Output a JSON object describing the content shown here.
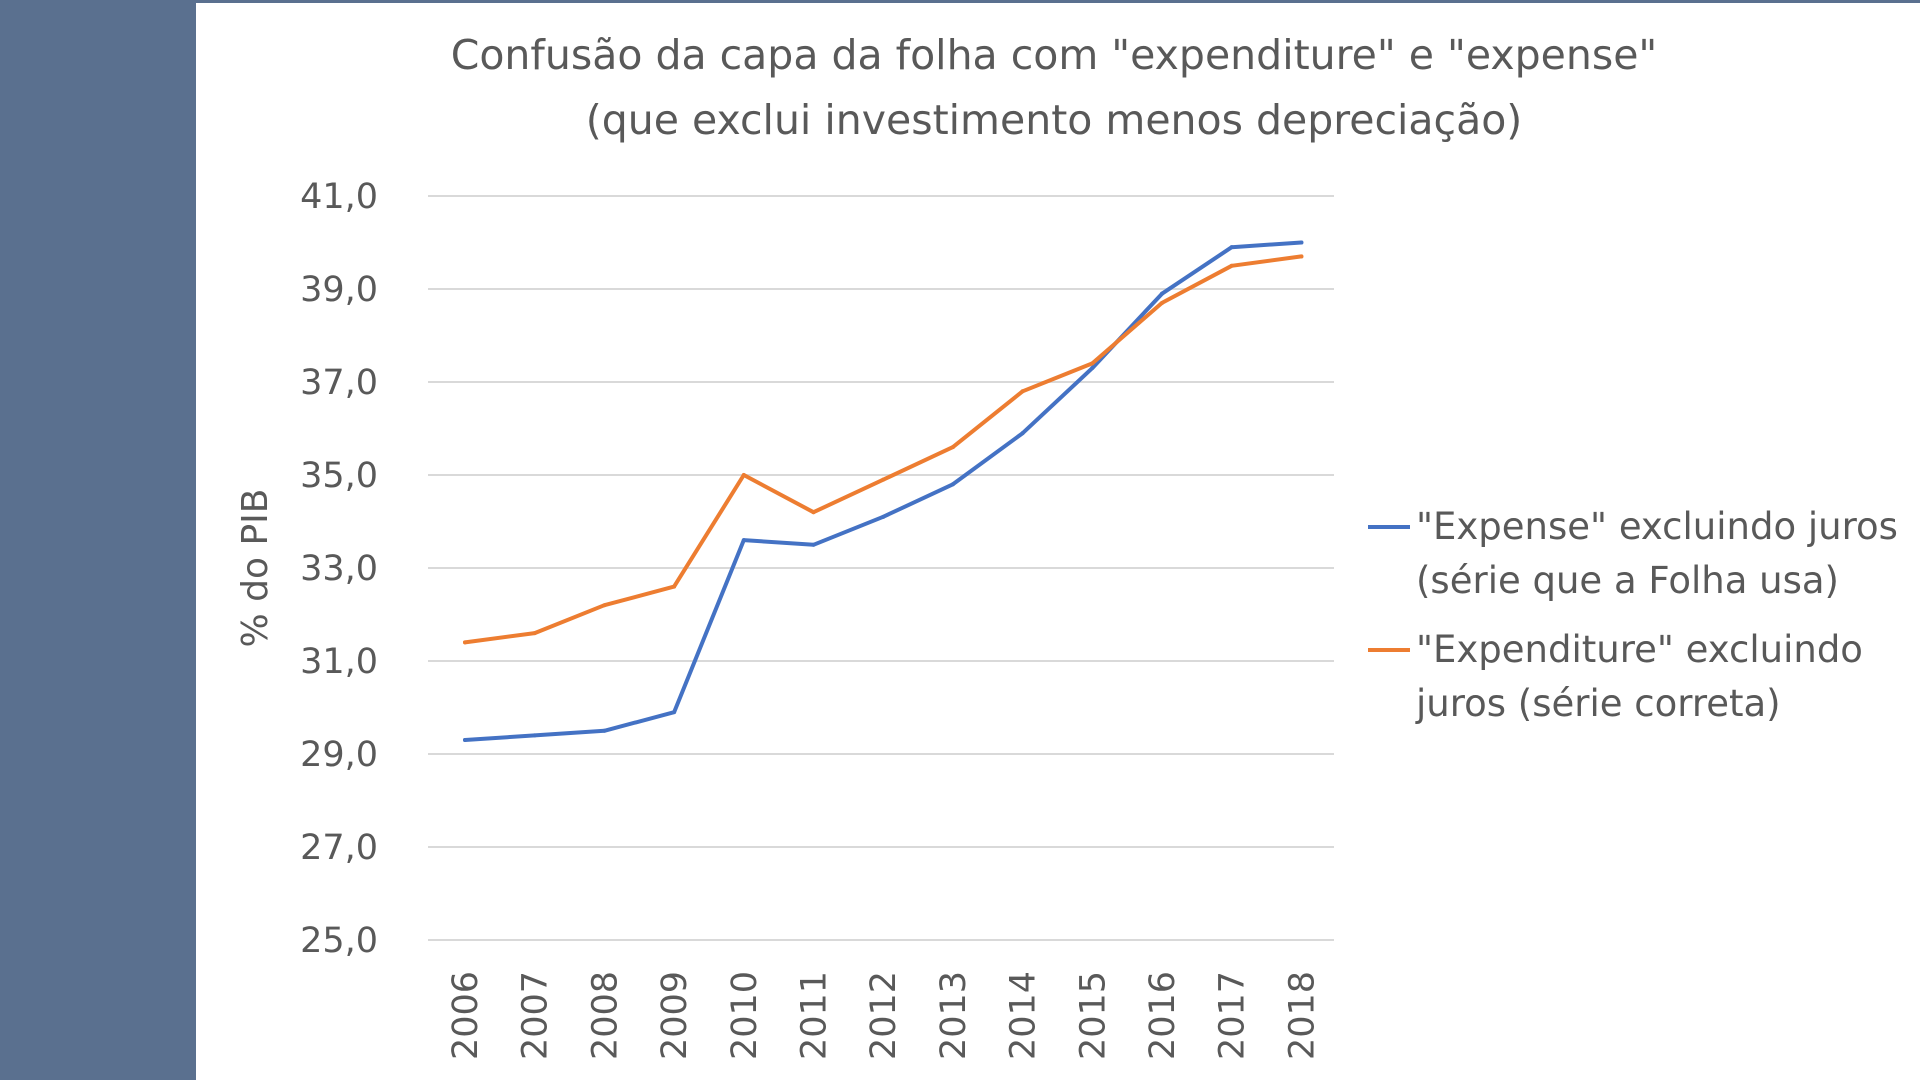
{
  "chart_data": {
    "type": "line",
    "title_lines": [
      "Confusão da capa da folha com \"expenditure\" e \"expense\"",
      "(que exclui investimento menos depreciação)"
    ],
    "xlabel": "",
    "ylabel": "% do PIB",
    "ylim": [
      25,
      41
    ],
    "yticks": [
      25,
      27,
      29,
      31,
      33,
      35,
      37,
      39,
      41
    ],
    "ytick_labels": [
      "25,0",
      "27,0",
      "29,0",
      "31,0",
      "33,0",
      "35,0",
      "37,0",
      "39,0",
      "41,0"
    ],
    "categories": [
      "2006",
      "2007",
      "2008",
      "2009",
      "2010",
      "2011",
      "2012",
      "2013",
      "2014",
      "2015",
      "2016",
      "2017",
      "2018"
    ],
    "grid": true,
    "legend_position": "right",
    "series": [
      {
        "name_lines": [
          "\"Expense\" excluindo juros",
          "(série que a Folha usa)"
        ],
        "color": "#4472c4",
        "values": [
          29.3,
          29.4,
          29.5,
          29.9,
          33.6,
          33.5,
          34.1,
          34.8,
          35.9,
          37.3,
          38.9,
          39.9,
          40.0
        ]
      },
      {
        "name_lines": [
          "\"Expenditure\" excluindo",
          "juros (série correta)"
        ],
        "color": "#ed7d31",
        "values": [
          31.4,
          31.6,
          32.2,
          32.6,
          35.0,
          34.2,
          34.9,
          35.6,
          36.8,
          37.4,
          38.7,
          39.5,
          39.7
        ]
      }
    ]
  }
}
